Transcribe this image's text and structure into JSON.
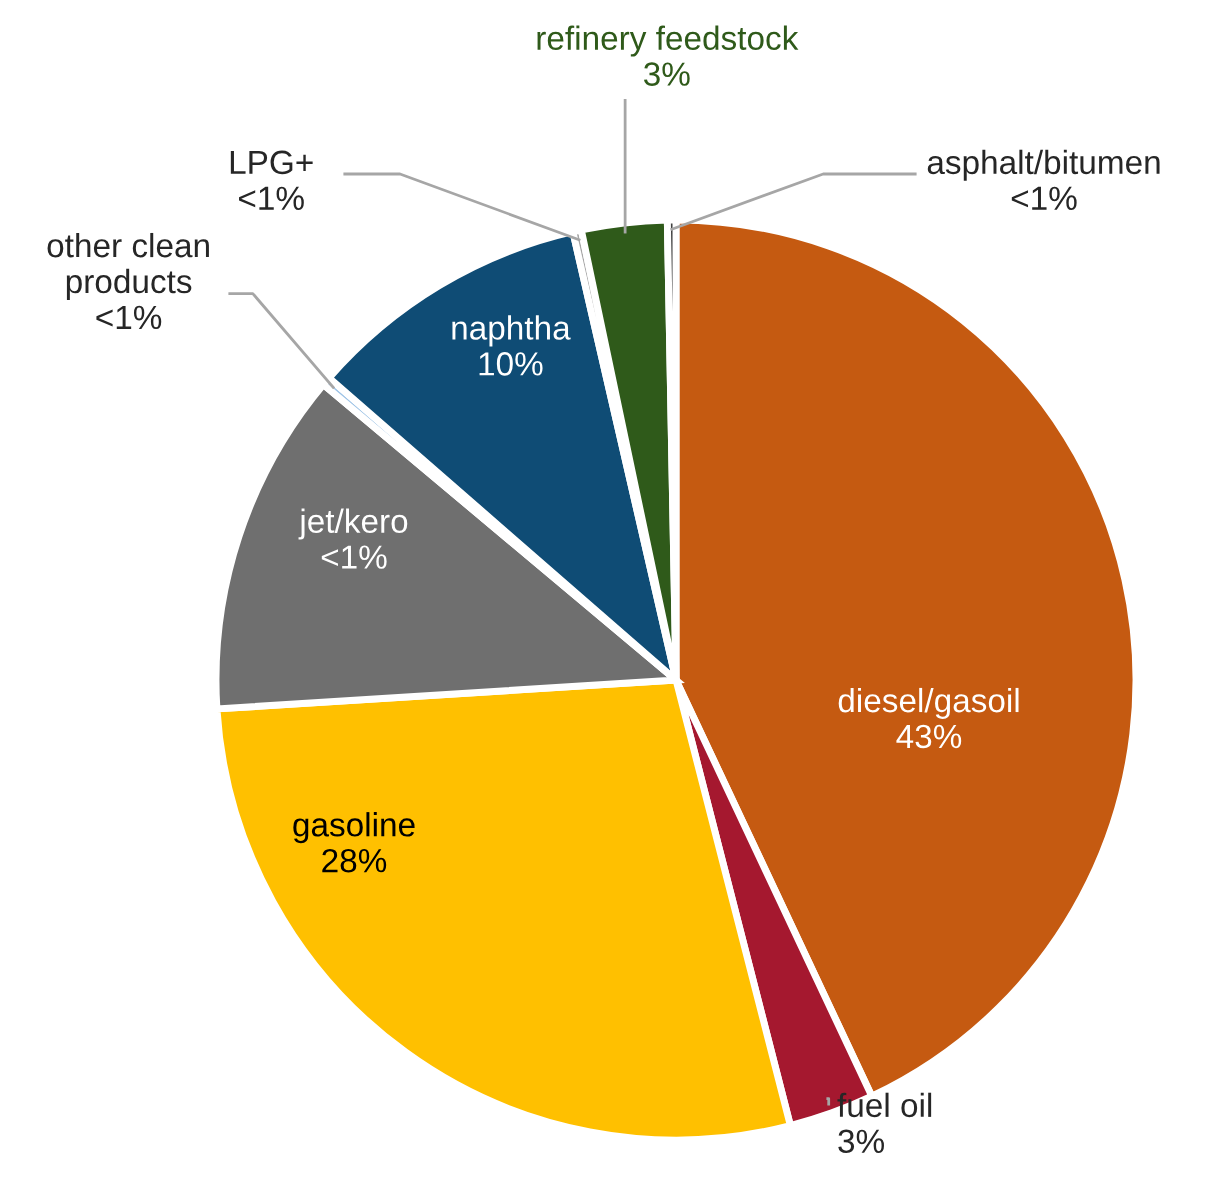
{
  "chart_data": {
    "type": "pie",
    "categories": [
      "diesel/gasoil",
      "fuel oil",
      "gasoline",
      "jet/kero",
      "other clean products",
      "naphtha",
      "LPG+",
      "refinery feedstock",
      "asphalt/bitumen"
    ],
    "values": [
      43,
      3,
      28,
      12.1,
      0.3,
      10,
      0.3,
      3,
      0.3
    ],
    "value_labels": [
      "43%",
      "3%",
      "28%",
      "<1%",
      "<1%",
      "10%",
      "<1%",
      "3%",
      "<1%"
    ],
    "colors": [
      "#c55a11",
      "#a5182f",
      "#ffc000",
      "#6f6f6f",
      "#9dc3e6",
      "#0f4c75",
      "#a6a6a6",
      "#2f5a1a",
      "#404040"
    ]
  }
}
